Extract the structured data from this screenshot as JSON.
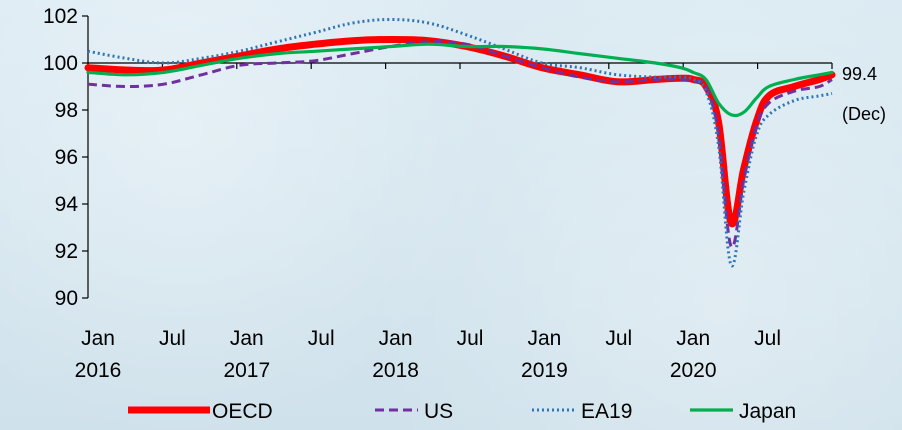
{
  "chart_data": {
    "type": "line",
    "title": "",
    "xlabel": "",
    "ylabel": "",
    "ylim": [
      90,
      102
    ],
    "yticks": [
      90,
      92,
      94,
      96,
      98,
      100,
      102
    ],
    "x_ticks": [
      {
        "month": 0,
        "line1": "Jan",
        "line2": "2016"
      },
      {
        "month": 6,
        "line1": "Jul",
        "line2": ""
      },
      {
        "month": 12,
        "line1": "Jan",
        "line2": "2017"
      },
      {
        "month": 18,
        "line1": "Jul",
        "line2": ""
      },
      {
        "month": 24,
        "line1": "Jan",
        "line2": "2018"
      },
      {
        "month": 30,
        "line1": "Jul",
        "line2": ""
      },
      {
        "month": 36,
        "line1": "Jan",
        "line2": "2019"
      },
      {
        "month": 42,
        "line1": "Jul",
        "line2": ""
      },
      {
        "month": 48,
        "line1": "Jan",
        "line2": "2020"
      },
      {
        "month": 54,
        "line1": "Jul",
        "line2": ""
      }
    ],
    "grid": false,
    "legend_position": "bottom",
    "annotations": [
      {
        "value_label": "99.4",
        "period_label": "(Dec)"
      }
    ],
    "series": [
      {
        "name": "OECD",
        "color": "#ff0000",
        "style": "solid-thick",
        "points": [
          [
            0,
            99.8
          ],
          [
            3,
            99.7
          ],
          [
            6,
            99.7
          ],
          [
            9,
            100.0
          ],
          [
            12,
            100.3
          ],
          [
            15,
            100.6
          ],
          [
            18,
            100.8
          ],
          [
            21,
            100.95
          ],
          [
            24,
            101.0
          ],
          [
            27,
            100.95
          ],
          [
            30,
            100.7
          ],
          [
            33,
            100.3
          ],
          [
            36,
            99.8
          ],
          [
            39,
            99.5
          ],
          [
            42,
            99.2
          ],
          [
            45,
            99.3
          ],
          [
            47,
            99.35
          ],
          [
            48,
            99.3
          ],
          [
            49,
            99.0
          ],
          [
            50,
            97.5
          ],
          [
            51,
            93.2
          ],
          [
            52,
            95.5
          ],
          [
            53,
            97.5
          ],
          [
            54,
            98.6
          ],
          [
            56,
            99.0
          ],
          [
            58,
            99.3
          ],
          [
            59,
            99.5
          ]
        ]
      },
      {
        "name": "US",
        "color": "#7030a0",
        "style": "dashed",
        "points": [
          [
            0,
            99.1
          ],
          [
            3,
            99.0
          ],
          [
            6,
            99.1
          ],
          [
            9,
            99.5
          ],
          [
            12,
            99.9
          ],
          [
            15,
            100.0
          ],
          [
            18,
            100.1
          ],
          [
            21,
            100.4
          ],
          [
            24,
            100.7
          ],
          [
            27,
            100.9
          ],
          [
            30,
            100.8
          ],
          [
            33,
            100.3
          ],
          [
            36,
            99.8
          ],
          [
            39,
            99.4
          ],
          [
            42,
            99.2
          ],
          [
            45,
            99.3
          ],
          [
            47,
            99.3
          ],
          [
            48,
            99.2
          ],
          [
            49,
            99.0
          ],
          [
            50,
            97.0
          ],
          [
            51,
            92.2
          ],
          [
            52,
            95.0
          ],
          [
            53,
            97.3
          ],
          [
            54,
            98.3
          ],
          [
            56,
            98.8
          ],
          [
            58,
            99.0
          ],
          [
            59,
            99.3
          ]
        ]
      },
      {
        "name": "EA19",
        "color": "#2e75b6",
        "style": "dotted",
        "points": [
          [
            0,
            100.5
          ],
          [
            3,
            100.2
          ],
          [
            6,
            100.0
          ],
          [
            9,
            100.2
          ],
          [
            12,
            100.5
          ],
          [
            15,
            100.9
          ],
          [
            18,
            101.3
          ],
          [
            21,
            101.7
          ],
          [
            24,
            101.85
          ],
          [
            27,
            101.7
          ],
          [
            30,
            101.2
          ],
          [
            33,
            100.6
          ],
          [
            36,
            100.0
          ],
          [
            39,
            99.8
          ],
          [
            42,
            99.5
          ],
          [
            45,
            99.4
          ],
          [
            47,
            99.4
          ],
          [
            48,
            99.3
          ],
          [
            49,
            98.8
          ],
          [
            50,
            96.5
          ],
          [
            51,
            91.4
          ],
          [
            52,
            94.5
          ],
          [
            53,
            96.9
          ],
          [
            54,
            97.8
          ],
          [
            56,
            98.4
          ],
          [
            58,
            98.6
          ],
          [
            59,
            98.7
          ]
        ]
      },
      {
        "name": "Japan",
        "color": "#00b050",
        "style": "solid",
        "points": [
          [
            0,
            99.6
          ],
          [
            3,
            99.5
          ],
          [
            6,
            99.6
          ],
          [
            9,
            99.9
          ],
          [
            12,
            100.2
          ],
          [
            15,
            100.4
          ],
          [
            18,
            100.5
          ],
          [
            21,
            100.6
          ],
          [
            24,
            100.7
          ],
          [
            27,
            100.8
          ],
          [
            30,
            100.7
          ],
          [
            33,
            100.7
          ],
          [
            36,
            100.6
          ],
          [
            39,
            100.4
          ],
          [
            42,
            100.2
          ],
          [
            45,
            100.0
          ],
          [
            47,
            99.8
          ],
          [
            48,
            99.6
          ],
          [
            49,
            99.3
          ],
          [
            50,
            98.3
          ],
          [
            51,
            97.8
          ],
          [
            52,
            97.9
          ],
          [
            53,
            98.5
          ],
          [
            54,
            99.0
          ],
          [
            56,
            99.3
          ],
          [
            58,
            99.5
          ],
          [
            59,
            99.6
          ]
        ]
      }
    ]
  }
}
